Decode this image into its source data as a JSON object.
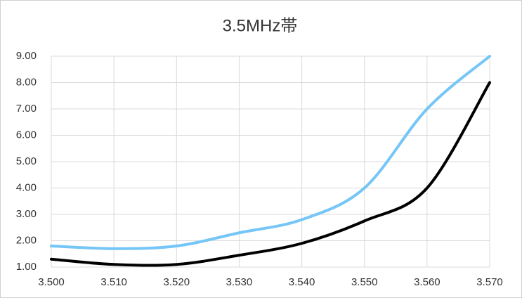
{
  "chart_data": {
    "type": "line",
    "title": "3.5MHz帯",
    "x": [
      3.5,
      3.51,
      3.52,
      3.53,
      3.54,
      3.55,
      3.56,
      3.57
    ],
    "series": [
      {
        "color": "#75c6f7",
        "values": [
          1.8,
          1.7,
          1.8,
          2.3,
          2.8,
          4.0,
          7.0,
          9.0
        ]
      },
      {
        "color": "#000000",
        "values": [
          1.3,
          1.1,
          1.1,
          1.45,
          1.9,
          2.75,
          4.0,
          8.0
        ]
      }
    ],
    "xlim": [
      3.5,
      3.57
    ],
    "xticks": [
      {
        "value": 3.5,
        "label": "3.500"
      },
      {
        "value": 3.51,
        "label": "3.510"
      },
      {
        "value": 3.52,
        "label": "3.520"
      },
      {
        "value": 3.53,
        "label": "3.530"
      },
      {
        "value": 3.54,
        "label": "3.540"
      },
      {
        "value": 3.55,
        "label": "3.550"
      },
      {
        "value": 3.56,
        "label": "3.560"
      },
      {
        "value": 3.57,
        "label": "3.570"
      }
    ],
    "ylim": [
      1,
      9
    ],
    "yticks": [
      {
        "value": 1,
        "label": "1.00"
      },
      {
        "value": 2,
        "label": "2.00"
      },
      {
        "value": 3,
        "label": "3.00"
      },
      {
        "value": 4,
        "label": "4.00"
      },
      {
        "value": 5,
        "label": "5.00"
      },
      {
        "value": 6,
        "label": "6.00"
      },
      {
        "value": 7,
        "label": "7.00"
      },
      {
        "value": 8,
        "label": "8.00"
      },
      {
        "value": 9,
        "label": "9.00"
      }
    ],
    "grid": true
  }
}
